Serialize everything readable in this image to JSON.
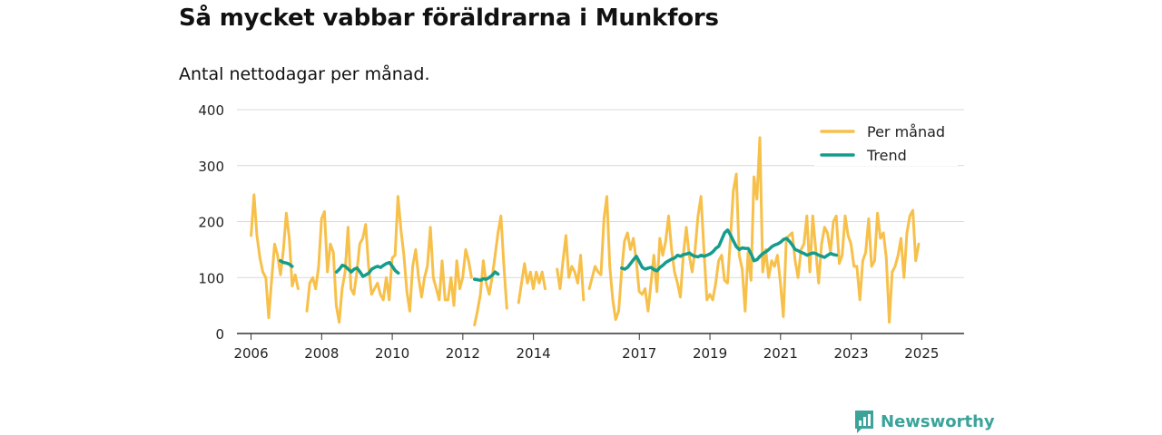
{
  "title": "Så mycket vabbar föräldrarna i Munkfors",
  "subtitle": "Antal nettodagar per månad.",
  "brand": {
    "name": "Newsworthy",
    "color": "#3aa39a",
    "icon": "newsworthy-logo-icon"
  },
  "colors": {
    "per_month": "#f7c04a",
    "trend": "#149c8c",
    "grid": "#d9d9d9",
    "axis": "#333333"
  },
  "chart_data": {
    "type": "line",
    "title": "Så mycket vabbar föräldrarna i Munkfors",
    "subtitle": "Antal nettodagar per månad.",
    "xlabel": "",
    "ylabel": "",
    "ylim": [
      0,
      400
    ],
    "xlim": [
      2005.6,
      2026.2
    ],
    "yticks": [
      0,
      100,
      200,
      300,
      400
    ],
    "ytick_labels": [
      "0",
      "100",
      "200",
      "300",
      "400"
    ],
    "xticks": [
      2006,
      2008,
      2010,
      2012,
      2014,
      2017,
      2019,
      2021,
      2023,
      2025
    ],
    "xtick_labels": [
      "2006",
      "2008",
      "2010",
      "2012",
      "2014",
      "2017",
      "2019",
      "2021",
      "2023",
      "2025"
    ],
    "grid": true,
    "legend_position": "top-right",
    "series": [
      {
        "name": "Per månad",
        "segments": [
          {
            "start": 2006.0,
            "values": [
              175,
              248,
              175,
              135,
              110,
              100,
              28,
              95,
              160,
              140,
              105,
              150,
              215,
              170,
              85,
              105,
              80
            ]
          },
          {
            "start": 2007.58,
            "values": [
              40,
              90,
              100,
              80,
              120,
              205,
              218,
              110,
              160,
              145,
              50,
              20,
              80,
              110,
              190,
              80,
              70,
              110,
              160,
              170,
              195,
              120,
              70,
              80,
              90,
              70,
              60,
              100,
              60,
              135,
              140,
              245,
              185,
              140,
              75,
              40,
              120,
              150,
              100,
              65,
              100,
              120,
              190,
              100,
              80,
              60,
              130,
              60,
              60,
              100,
              50,
              130,
              80,
              100,
              150,
              130,
              100
            ]
          },
          {
            "start": 2012.33,
            "values": [
              15,
              40,
              70,
              130,
              90,
              70,
              100,
              140,
              180,
              210,
              120,
              45
            ]
          },
          {
            "start": 2013.58,
            "values": [
              55,
              90,
              125,
              90,
              110,
              80,
              110,
              90,
              110,
              80
            ]
          },
          {
            "start": 2014.67,
            "values": [
              115,
              80,
              130,
              175,
              100,
              120,
              110,
              90,
              140,
              60
            ]
          },
          {
            "start": 2015.58,
            "values": [
              80,
              100,
              120,
              110,
              105,
              205,
              245,
              120,
              60,
              25,
              40,
              110,
              165,
              180,
              150,
              170,
              130,
              75,
              70,
              80,
              40,
              90,
              140,
              75,
              170,
              140,
              165,
              210,
              150,
              110,
              90,
              65,
              140,
              190,
              140,
              110,
              150,
              210,
              245,
              150,
              60,
              70,
              60,
              90,
              130,
              140,
              95,
              90,
              170,
              255,
              285,
              140,
              115,
              40,
              145,
              95,
              280,
              240,
              350,
              110,
              150,
              100,
              130,
              120,
              140,
              90,
              30,
              170,
              175,
              180,
              130,
              100,
              150,
              160,
              210,
              110,
              210,
              150,
              90,
              160,
              190,
              180,
              145,
              200,
              210,
              125,
              140,
              210,
              175,
              160,
              120,
              120,
              60,
              130,
              145,
              205,
              120,
              130,
              215,
              170,
              180,
              135,
              20,
              110,
              120,
              140,
              170,
              100,
              180,
              210,
              220,
              130,
              160
            ]
          }
        ]
      },
      {
        "name": "Trend",
        "segments": [
          {
            "start": 2006.83,
            "values": [
              130,
              127,
              126,
              124,
              120
            ]
          },
          {
            "start": 2008.42,
            "values": [
              110,
              115,
              122,
              120,
              115,
              110,
              115,
              117,
              110,
              102,
              105,
              108,
              115,
              118,
              120,
              118,
              122,
              125,
              127,
              120,
              112,
              108
            ]
          },
          {
            "start": 2012.33,
            "values": [
              97,
              96,
              95,
              98,
              97,
              100,
              104,
              110,
              106
            ]
          },
          {
            "start": 2016.5,
            "values": [
              117,
              115,
              118,
              125,
              132,
              138,
              128,
              118,
              115,
              117,
              118,
              114,
              112,
              118,
              122,
              127,
              130,
              133,
              135,
              140,
              138,
              141,
              142,
              144,
              140,
              138,
              137,
              140,
              138,
              140,
              142,
              146,
              152,
              156,
              168,
              180,
              185,
              176,
              165,
              155,
              150,
              153,
              152,
              152,
              142,
              130,
              132,
              138,
              143,
              146,
              150,
              155,
              158,
              160,
              163,
              168,
              170,
              165,
              158,
              150,
              148,
              145,
              143,
              140,
              142,
              144,
              143,
              140,
              138,
              136,
              140,
              143,
              141,
              140
            ]
          }
        ]
      }
    ]
  }
}
